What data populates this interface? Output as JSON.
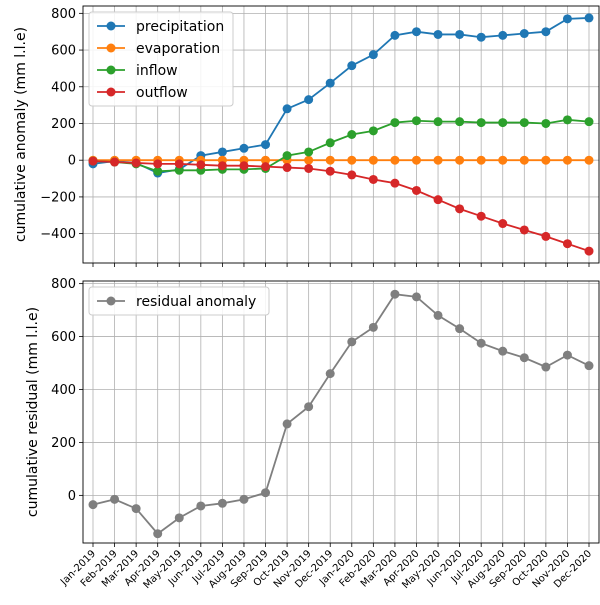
{
  "chart_data": [
    {
      "type": "line",
      "ylabel": "cumulative anomaly (mm l.l.e)",
      "ylim": [
        -560,
        840
      ],
      "yticks": [
        -400,
        -200,
        0,
        200,
        400,
        600,
        800
      ],
      "grid": true,
      "legend": "top-left",
      "x": [
        "Jan-2019",
        "Feb-2019",
        "Mar-2019",
        "Apr-2019",
        "May-2019",
        "Jun-2019",
        "Jul-2019",
        "Aug-2019",
        "Sep-2019",
        "Oct-2019",
        "Nov-2019",
        "Dec-2019",
        "Jan-2020",
        "Feb-2020",
        "Mar-2020",
        "Apr-2020",
        "May-2020",
        "Jun-2020",
        "Jul-2020",
        "Aug-2020",
        "Sep-2020",
        "Oct-2020",
        "Nov-2020",
        "Dec-2020"
      ],
      "series": [
        {
          "name": "precipitation",
          "color": "#1f77b4",
          "values": [
            -20,
            -5,
            -15,
            -70,
            -50,
            25,
            45,
            65,
            85,
            280,
            330,
            420,
            515,
            575,
            680,
            700,
            685,
            685,
            670,
            680,
            690,
            700,
            770,
            775
          ]
        },
        {
          "name": "evaporation",
          "color": "#ff7f0e",
          "values": [
            0,
            0,
            0,
            0,
            0,
            0,
            0,
            0,
            0,
            0,
            0,
            0,
            0,
            0,
            0,
            0,
            0,
            0,
            0,
            0,
            0,
            0,
            0,
            0
          ]
        },
        {
          "name": "inflow",
          "color": "#2ca02c",
          "values": [
            -5,
            -10,
            -20,
            -60,
            -55,
            -55,
            -50,
            -50,
            -45,
            25,
            45,
            95,
            140,
            160,
            205,
            215,
            210,
            210,
            205,
            205,
            205,
            200,
            220,
            210
          ]
        },
        {
          "name": "outflow",
          "color": "#d62728",
          "values": [
            -5,
            -10,
            -15,
            -20,
            -20,
            -25,
            -30,
            -30,
            -35,
            -40,
            -45,
            -60,
            -80,
            -105,
            -125,
            -165,
            -215,
            -265,
            -305,
            -345,
            -380,
            -415,
            -455,
            -495
          ]
        }
      ]
    },
    {
      "type": "line",
      "ylabel": "cumulative residual (mm l.l.e)",
      "ylim": [
        -180,
        810
      ],
      "yticks": [
        0,
        200,
        400,
        600,
        800
      ],
      "grid": true,
      "legend": "top-left",
      "x": [
        "Jan-2019",
        "Feb-2019",
        "Mar-2019",
        "Apr-2019",
        "May-2019",
        "Jun-2019",
        "Jul-2019",
        "Aug-2019",
        "Sep-2019",
        "Oct-2019",
        "Nov-2019",
        "Dec-2019",
        "Jan-2020",
        "Feb-2020",
        "Mar-2020",
        "Apr-2020",
        "May-2020",
        "Jun-2020",
        "Jul-2020",
        "Aug-2020",
        "Sep-2020",
        "Oct-2020",
        "Nov-2020",
        "Dec-2020"
      ],
      "series": [
        {
          "name": "residual anomaly",
          "color": "#7f7f7f",
          "values": [
            -35,
            -15,
            -50,
            -145,
            -85,
            -40,
            -30,
            -15,
            10,
            270,
            335,
            460,
            580,
            635,
            760,
            750,
            680,
            630,
            575,
            545,
            520,
            485,
            530,
            490
          ]
        }
      ]
    }
  ]
}
